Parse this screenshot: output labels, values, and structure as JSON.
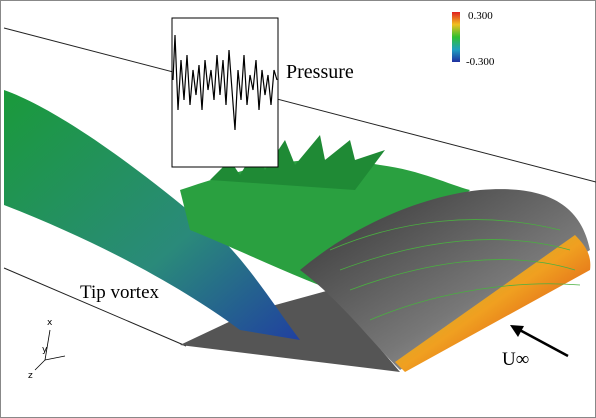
{
  "labels": {
    "pressure": "Pressure",
    "tip_vortex": "Tip vortex",
    "freestream": "U∞"
  },
  "colorbar": {
    "max": "0.300",
    "min": "-0.300"
  },
  "axes": {
    "x": "x",
    "y": "y",
    "z": "z"
  }
}
